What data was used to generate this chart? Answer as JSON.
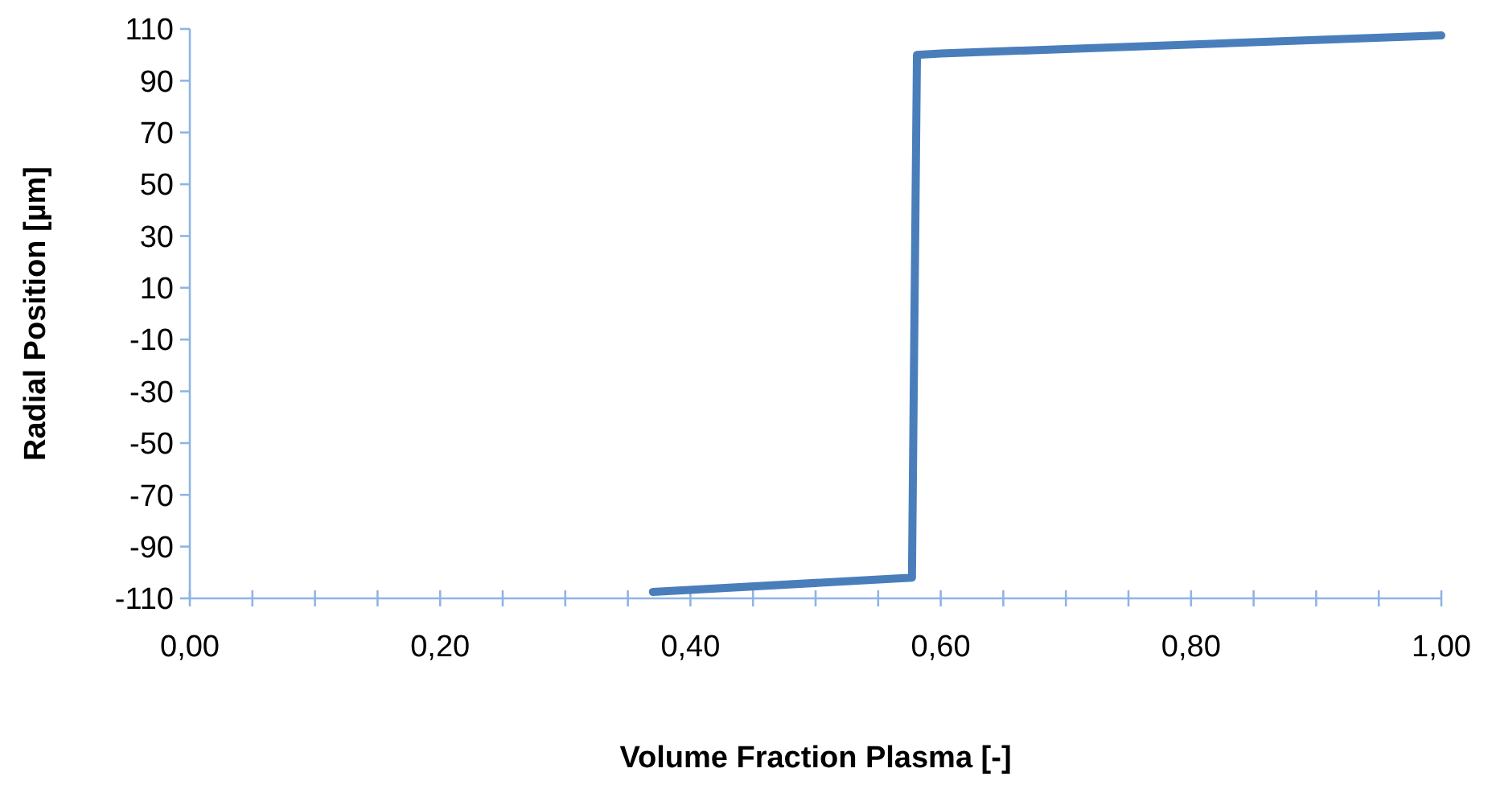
{
  "chart_data": {
    "type": "line",
    "xlabel": "Volume Fraction Plasma [-]",
    "ylabel": "Radial Position [µm]",
    "series": [
      {
        "color": "#4a7ebb",
        "x": [
          0.37,
          0.577,
          0.581,
          0.6,
          1.0
        ],
        "values": [
          -107.5,
          -102,
          100,
          100.5,
          107.5
        ]
      }
    ],
    "xlim": [
      0,
      1
    ],
    "ylim": [
      -110,
      110
    ],
    "xticks": [
      {
        "value": 0,
        "label": "0,00"
      },
      {
        "value": 0.05,
        "label": null
      },
      {
        "value": 0.1,
        "label": null
      },
      {
        "value": 0.15,
        "label": null
      },
      {
        "value": 0.2,
        "label": "0,20"
      },
      {
        "value": 0.25,
        "label": null
      },
      {
        "value": 0.3,
        "label": null
      },
      {
        "value": 0.35,
        "label": null
      },
      {
        "value": 0.4,
        "label": "0,40"
      },
      {
        "value": 0.45,
        "label": null
      },
      {
        "value": 0.5,
        "label": null
      },
      {
        "value": 0.55,
        "label": null
      },
      {
        "value": 0.6,
        "label": "0,60"
      },
      {
        "value": 0.65,
        "label": null
      },
      {
        "value": 0.7,
        "label": null
      },
      {
        "value": 0.75,
        "label": null
      },
      {
        "value": 0.8,
        "label": "0,80"
      },
      {
        "value": 0.85,
        "label": null
      },
      {
        "value": 0.9,
        "label": null
      },
      {
        "value": 0.95,
        "label": null
      },
      {
        "value": 1,
        "label": "1,00"
      }
    ],
    "yticks": [
      -110,
      -90,
      -70,
      -50,
      -30,
      -10,
      10,
      30,
      50,
      70,
      90,
      110
    ],
    "grid": false,
    "marker": "none",
    "line_style": "solid"
  }
}
